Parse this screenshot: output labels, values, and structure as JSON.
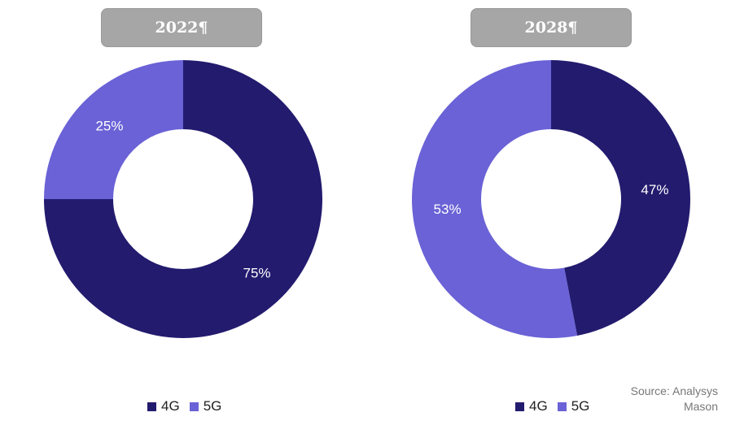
{
  "chart_data": [
    {
      "type": "pie",
      "donut": true,
      "title": "2022¶",
      "categories": [
        "4G",
        "5G"
      ],
      "values": [
        75,
        25
      ],
      "labels": [
        "75%",
        "25%"
      ],
      "colors": [
        "#231b6e",
        "#6a62d6"
      ],
      "legend": "bottom"
    },
    {
      "type": "pie",
      "donut": true,
      "title": "2028¶",
      "categories": [
        "4G",
        "5G"
      ],
      "values": [
        47,
        53
      ],
      "labels": [
        "47%",
        "53%"
      ],
      "colors": [
        "#231b6e",
        "#6a62d6"
      ],
      "legend": "bottom"
    }
  ],
  "legend": {
    "items": [
      "4G",
      "5G"
    ]
  },
  "source": {
    "line1": "Source: Analysys",
    "line2": "Mason"
  }
}
